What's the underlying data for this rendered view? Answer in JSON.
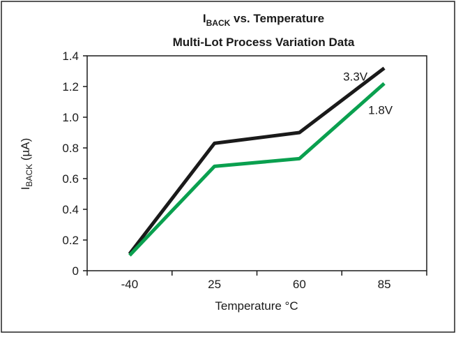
{
  "chart_data": {
    "type": "line",
    "title": {
      "line1_main": "I",
      "line1_sub": "BACK",
      "line1_rest": " vs. Temperature",
      "line2": "Multi-Lot Process Variation Data"
    },
    "ylabel": {
      "main": "I",
      "sub": "BACK",
      "rest": " (µA)"
    },
    "xlabel": "Temperature °C",
    "categories": [
      "-40",
      "25",
      "60",
      "85"
    ],
    "y_ticks": [
      "0",
      "0.2",
      "0.4",
      "0.6",
      "0.8",
      "1.0",
      "1.2",
      "1.4"
    ],
    "ylim": [
      0,
      1.4
    ],
    "grid": false,
    "series": [
      {
        "name": "3.3V",
        "color": "#1a1a1a",
        "values": [
          0.11,
          0.83,
          0.9,
          1.32
        ]
      },
      {
        "name": "1.8V",
        "color": "#0aa04f",
        "values": [
          0.1,
          0.68,
          0.73,
          1.22
        ]
      }
    ]
  }
}
